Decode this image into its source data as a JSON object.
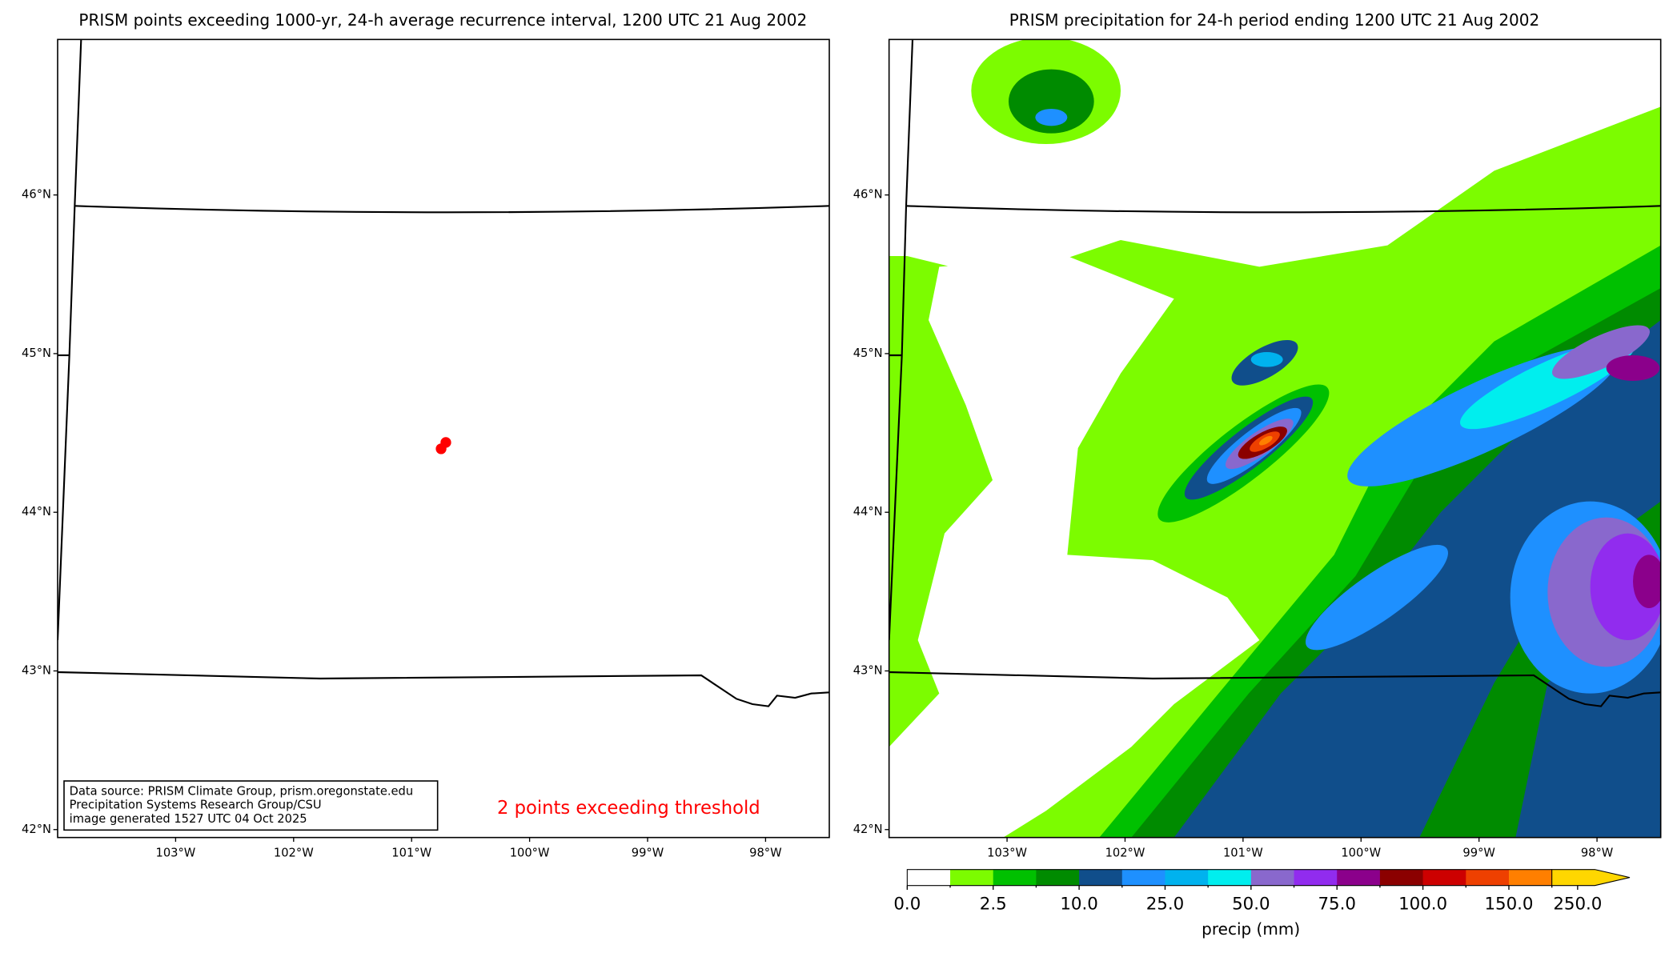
{
  "left_panel": {
    "title": "PRISM points exceeding 1000-yr, 24-h average recurrence interval, 1200 UTC 21 Aug 2002",
    "points": [
      {
        "lon": -100.75,
        "lat": 44.4
      },
      {
        "lon": -100.71,
        "lat": 44.44
      }
    ],
    "point_color": "#ff0000",
    "annotation": "2 points exceeding threshold",
    "source_lines": [
      "Data source: PRISM Climate Group, prism.oregonstate.edu",
      "Precipitation Systems Research Group/CSU",
      "image generated 1527 UTC 04 Oct 2025"
    ]
  },
  "right_panel": {
    "title": "PRISM precipitation for 24-h period ending 1200 UTC 21 Aug 2002"
  },
  "axes": {
    "xlim": [
      -104.0,
      -97.46
    ],
    "ylim": [
      41.95,
      46.98
    ],
    "xticks": [
      {
        "value": -103,
        "label": "103°W"
      },
      {
        "value": -102,
        "label": "102°W"
      },
      {
        "value": -101,
        "label": "101°W"
      },
      {
        "value": -100,
        "label": "100°W"
      },
      {
        "value": -99,
        "label": "99°W"
      },
      {
        "value": -98,
        "label": "98°W"
      }
    ],
    "yticks": [
      {
        "value": 42,
        "label": "42°N"
      },
      {
        "value": 43,
        "label": "43°N"
      },
      {
        "value": 44,
        "label": "44°N"
      },
      {
        "value": 45,
        "label": "45°N"
      },
      {
        "value": 46,
        "label": "46°N"
      }
    ]
  },
  "colorbar": {
    "label": "precip (mm)",
    "colors": [
      "#ffffff",
      "#7cfc00",
      "#00c000",
      "#008b00",
      "#104e8b",
      "#1e90ff",
      "#00b2ee",
      "#00eeee",
      "#8968cd",
      "#912cee",
      "#8b008b",
      "#8b0000",
      "#cd0000",
      "#ee4000",
      "#ff7f00",
      "#ffd700"
    ],
    "ticks": [
      {
        "value": 0,
        "label": "0.0"
      },
      {
        "value": 2.5,
        "label": "2.5"
      },
      {
        "value": 10,
        "label": "10.0"
      },
      {
        "value": 25,
        "label": "25.0"
      },
      {
        "value": 50,
        "label": "50.0"
      },
      {
        "value": 75,
        "label": "75.0"
      },
      {
        "value": 100,
        "label": "100.0"
      },
      {
        "value": 150,
        "label": "150.0"
      },
      {
        "value": 250,
        "label": "250.0"
      }
    ]
  }
}
